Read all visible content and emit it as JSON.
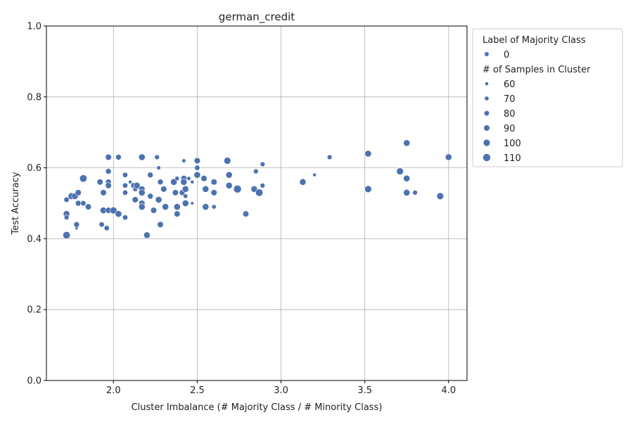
{
  "chart_data": {
    "type": "scatter",
    "title": "german_credit",
    "xlabel": "Cluster Imbalance (# Majority Class / # Minority Class)",
    "ylabel": "Test Accuracy",
    "xlim": [
      1.6,
      4.11
    ],
    "ylim": [
      0.0,
      1.0
    ],
    "xticks": [
      "2.0",
      "2.5",
      "3.0",
      "3.5",
      "4.0"
    ],
    "xtick_values": [
      2.0,
      2.5,
      3.0,
      3.5,
      4.0
    ],
    "yticks": [
      "0.0",
      "0.2",
      "0.4",
      "0.6",
      "0.8",
      "1.0"
    ],
    "ytick_values": [
      0.0,
      0.2,
      0.4,
      0.6,
      0.8,
      1.0
    ],
    "grid": true,
    "point_color": "#4c72b0",
    "legend_placement": "outside-right-top",
    "legend": {
      "hue_title": "Label of Majority Class",
      "hue_entries": [
        {
          "label": "0",
          "color": "#4c72b0"
        }
      ],
      "size_title": "# of Samples in Cluster",
      "size_entries": [
        {
          "label": "60",
          "value": 60
        },
        {
          "label": "70",
          "value": 70
        },
        {
          "label": "80",
          "value": 80
        },
        {
          "label": "90",
          "value": 90
        },
        {
          "label": "100",
          "value": 100
        },
        {
          "label": "110",
          "value": 110
        }
      ]
    },
    "size_range": [
      55,
      115
    ],
    "points": [
      {
        "x": 1.72,
        "y": 0.51,
        "s": 85
      },
      {
        "x": 1.72,
        "y": 0.47,
        "s": 100
      },
      {
        "x": 1.72,
        "y": 0.46,
        "s": 80
      },
      {
        "x": 1.72,
        "y": 0.41,
        "s": 110
      },
      {
        "x": 1.75,
        "y": 0.52,
        "s": 105
      },
      {
        "x": 1.77,
        "y": 0.52,
        "s": 100
      },
      {
        "x": 1.78,
        "y": 0.43,
        "s": 60
      },
      {
        "x": 1.78,
        "y": 0.44,
        "s": 90
      },
      {
        "x": 1.79,
        "y": 0.53,
        "s": 95
      },
      {
        "x": 1.79,
        "y": 0.5,
        "s": 90
      },
      {
        "x": 1.82,
        "y": 0.57,
        "s": 110
      },
      {
        "x": 1.82,
        "y": 0.5,
        "s": 85
      },
      {
        "x": 1.85,
        "y": 0.49,
        "s": 95
      },
      {
        "x": 1.92,
        "y": 0.56,
        "s": 95
      },
      {
        "x": 1.93,
        "y": 0.44,
        "s": 85
      },
      {
        "x": 1.94,
        "y": 0.53,
        "s": 95
      },
      {
        "x": 1.94,
        "y": 0.48,
        "s": 100
      },
      {
        "x": 1.96,
        "y": 0.43,
        "s": 85
      },
      {
        "x": 1.97,
        "y": 0.63,
        "s": 95
      },
      {
        "x": 1.97,
        "y": 0.59,
        "s": 90
      },
      {
        "x": 1.97,
        "y": 0.56,
        "s": 90
      },
      {
        "x": 1.97,
        "y": 0.55,
        "s": 95
      },
      {
        "x": 1.97,
        "y": 0.48,
        "s": 95
      },
      {
        "x": 2.0,
        "y": 0.48,
        "s": 105
      },
      {
        "x": 2.03,
        "y": 0.63,
        "s": 90
      },
      {
        "x": 2.03,
        "y": 0.47,
        "s": 100
      },
      {
        "x": 2.07,
        "y": 0.58,
        "s": 85
      },
      {
        "x": 2.07,
        "y": 0.55,
        "s": 85
      },
      {
        "x": 2.07,
        "y": 0.53,
        "s": 85
      },
      {
        "x": 2.07,
        "y": 0.46,
        "s": 85
      },
      {
        "x": 2.1,
        "y": 0.56,
        "s": 65
      },
      {
        "x": 2.12,
        "y": 0.55,
        "s": 90
      },
      {
        "x": 2.13,
        "y": 0.54,
        "s": 80
      },
      {
        "x": 2.13,
        "y": 0.51,
        "s": 95
      },
      {
        "x": 2.14,
        "y": 0.55,
        "s": 100
      },
      {
        "x": 2.17,
        "y": 0.63,
        "s": 100
      },
      {
        "x": 2.17,
        "y": 0.54,
        "s": 95
      },
      {
        "x": 2.17,
        "y": 0.53,
        "s": 100
      },
      {
        "x": 2.17,
        "y": 0.5,
        "s": 95
      },
      {
        "x": 2.17,
        "y": 0.49,
        "s": 100
      },
      {
        "x": 2.2,
        "y": 0.41,
        "s": 100
      },
      {
        "x": 2.22,
        "y": 0.58,
        "s": 90
      },
      {
        "x": 2.22,
        "y": 0.52,
        "s": 90
      },
      {
        "x": 2.24,
        "y": 0.48,
        "s": 95
      },
      {
        "x": 2.26,
        "y": 0.63,
        "s": 80
      },
      {
        "x": 2.27,
        "y": 0.6,
        "s": 70
      },
      {
        "x": 2.27,
        "y": 0.51,
        "s": 100
      },
      {
        "x": 2.28,
        "y": 0.56,
        "s": 90
      },
      {
        "x": 2.28,
        "y": 0.44,
        "s": 95
      },
      {
        "x": 2.3,
        "y": 0.54,
        "s": 95
      },
      {
        "x": 2.31,
        "y": 0.49,
        "s": 100
      },
      {
        "x": 2.36,
        "y": 0.56,
        "s": 100
      },
      {
        "x": 2.37,
        "y": 0.53,
        "s": 95
      },
      {
        "x": 2.38,
        "y": 0.57,
        "s": 75
      },
      {
        "x": 2.38,
        "y": 0.49,
        "s": 100
      },
      {
        "x": 2.38,
        "y": 0.47,
        "s": 95
      },
      {
        "x": 2.41,
        "y": 0.53,
        "s": 90
      },
      {
        "x": 2.42,
        "y": 0.62,
        "s": 70
      },
      {
        "x": 2.42,
        "y": 0.57,
        "s": 95
      },
      {
        "x": 2.42,
        "y": 0.56,
        "s": 100
      },
      {
        "x": 2.43,
        "y": 0.54,
        "s": 100
      },
      {
        "x": 2.43,
        "y": 0.52,
        "s": 75
      },
      {
        "x": 2.43,
        "y": 0.5,
        "s": 100
      },
      {
        "x": 2.45,
        "y": 0.57,
        "s": 70
      },
      {
        "x": 2.47,
        "y": 0.56,
        "s": 65
      },
      {
        "x": 2.47,
        "y": 0.5,
        "s": 60
      },
      {
        "x": 2.5,
        "y": 0.62,
        "s": 95
      },
      {
        "x": 2.5,
        "y": 0.6,
        "s": 85
      },
      {
        "x": 2.5,
        "y": 0.58,
        "s": 100
      },
      {
        "x": 2.54,
        "y": 0.57,
        "s": 95
      },
      {
        "x": 2.55,
        "y": 0.54,
        "s": 100
      },
      {
        "x": 2.55,
        "y": 0.49,
        "s": 100
      },
      {
        "x": 2.6,
        "y": 0.56,
        "s": 95
      },
      {
        "x": 2.6,
        "y": 0.53,
        "s": 95
      },
      {
        "x": 2.6,
        "y": 0.49,
        "s": 75
      },
      {
        "x": 2.68,
        "y": 0.62,
        "s": 105
      },
      {
        "x": 2.69,
        "y": 0.58,
        "s": 100
      },
      {
        "x": 2.69,
        "y": 0.55,
        "s": 100
      },
      {
        "x": 2.74,
        "y": 0.54,
        "s": 115
      },
      {
        "x": 2.79,
        "y": 0.47,
        "s": 95
      },
      {
        "x": 2.84,
        "y": 0.54,
        "s": 100
      },
      {
        "x": 2.85,
        "y": 0.59,
        "s": 80
      },
      {
        "x": 2.87,
        "y": 0.53,
        "s": 110
      },
      {
        "x": 2.89,
        "y": 0.61,
        "s": 80
      },
      {
        "x": 2.89,
        "y": 0.55,
        "s": 80
      },
      {
        "x": 3.13,
        "y": 0.56,
        "s": 100
      },
      {
        "x": 3.2,
        "y": 0.58,
        "s": 65
      },
      {
        "x": 3.29,
        "y": 0.63,
        "s": 80
      },
      {
        "x": 3.52,
        "y": 0.64,
        "s": 100
      },
      {
        "x": 3.52,
        "y": 0.54,
        "s": 105
      },
      {
        "x": 3.71,
        "y": 0.59,
        "s": 105
      },
      {
        "x": 3.75,
        "y": 0.67,
        "s": 100
      },
      {
        "x": 3.75,
        "y": 0.57,
        "s": 100
      },
      {
        "x": 3.75,
        "y": 0.53,
        "s": 100
      },
      {
        "x": 3.8,
        "y": 0.53,
        "s": 80
      },
      {
        "x": 3.95,
        "y": 0.52,
        "s": 105
      },
      {
        "x": 4.0,
        "y": 0.63,
        "s": 100
      }
    ]
  }
}
